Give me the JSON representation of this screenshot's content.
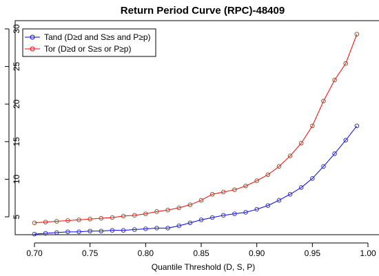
{
  "chart_data": {
    "type": "line",
    "title": "Return Period Curve (RPC)-48409",
    "xlabel": "Quantile Threshold (D, S, P)",
    "ylabel": "",
    "xlim": [
      0.7,
      1.0
    ],
    "ylim": [
      2.3,
      30.8
    ],
    "xticks": [
      "0.70",
      "0.75",
      "0.80",
      "0.85",
      "0.90",
      "0.95",
      "1.00"
    ],
    "yticks": [
      "5",
      "10",
      "15",
      "20",
      "25",
      "30"
    ],
    "grid": false,
    "legend_position": "top-left",
    "x": [
      0.7,
      0.71,
      0.72,
      0.73,
      0.74,
      0.75,
      0.76,
      0.77,
      0.78,
      0.79,
      0.8,
      0.81,
      0.82,
      0.83,
      0.84,
      0.85,
      0.86,
      0.87,
      0.88,
      0.89,
      0.9,
      0.91,
      0.92,
      0.93,
      0.94,
      0.95,
      0.96,
      0.97,
      0.98,
      0.99
    ],
    "series": [
      {
        "name": "Tand (D≥d and S≥s and P≥p)",
        "color": "#0000FF",
        "marker_color": "#3a3aa0",
        "values": [
          2.7,
          2.8,
          2.9,
          3.0,
          3.0,
          3.1,
          3.1,
          3.2,
          3.2,
          3.3,
          3.4,
          3.5,
          3.5,
          3.8,
          4.2,
          4.6,
          4.9,
          5.2,
          5.4,
          5.6,
          6.0,
          6.5,
          7.2,
          8.0,
          8.9,
          10.1,
          11.7,
          13.4,
          15.2,
          17.1
        ]
      },
      {
        "name": "Tor (D≥d or S≥s or P≥p)",
        "color": "#FF0000",
        "marker_color": "#8a5a3a",
        "values": [
          4.2,
          4.3,
          4.4,
          4.5,
          4.6,
          4.7,
          4.8,
          4.9,
          5.1,
          5.2,
          5.4,
          5.7,
          5.9,
          6.2,
          6.6,
          7.2,
          8.0,
          8.3,
          8.6,
          9.1,
          9.8,
          10.6,
          11.7,
          13.1,
          14.8,
          17.1,
          20.4,
          23.2,
          25.4,
          29.3
        ]
      }
    ]
  }
}
